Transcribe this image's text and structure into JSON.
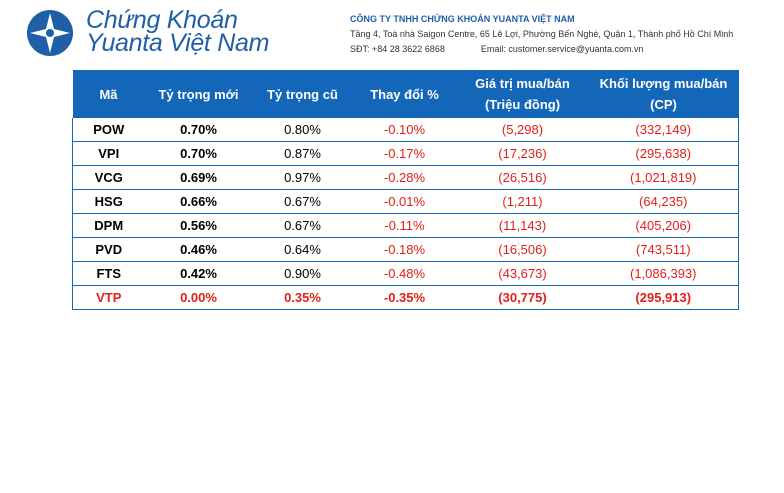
{
  "logo": {
    "line1": "Chứng Khoán",
    "line2": "Yuanta Việt Nam",
    "icon": "yuanta-logo-icon",
    "color": "#1f5fa8"
  },
  "company": {
    "name": "CÔNG TY TNHH CHỨNG KHOÁN YUANTA VIỆT NAM",
    "address": "Tầng 4, Toà nhà Saigon Centre, 65 Lê Lợi, Phường Bến Nghé, Quận 1, Thành phố Hồ Chí Minh",
    "phone": "SĐT: +84 28 3622 6868",
    "email": "Email: customer.service@yuanta.com.vn"
  },
  "table": {
    "header_color": "#1467b8",
    "negative_color": "#e0201b",
    "headers": [
      "Mã",
      "Tỷ trọng mới",
      "Tỷ trọng cũ",
      "Thay đổi %",
      "Giá trị mua/bán (Triệu đồng)",
      "Khối lượng mua/bán (CP)"
    ],
    "rows": [
      {
        "code": "POW",
        "new": "0.70%",
        "old": "0.80%",
        "change": "-0.10%",
        "value": "(5,298)",
        "volume": "(332,149)"
      },
      {
        "code": "VPI",
        "new": "0.70%",
        "old": "0.87%",
        "change": "-0.17%",
        "value": "(17,236)",
        "volume": "(295,638)"
      },
      {
        "code": "VCG",
        "new": "0.69%",
        "old": "0.97%",
        "change": "-0.28%",
        "value": "(26,516)",
        "volume": "(1,021,819)"
      },
      {
        "code": "HSG",
        "new": "0.66%",
        "old": "0.67%",
        "change": "-0.01%",
        "value": "(1,211)",
        "volume": "(64,235)"
      },
      {
        "code": "DPM",
        "new": "0.56%",
        "old": "0.67%",
        "change": "-0.11%",
        "value": "(11,143)",
        "volume": "(405,206)"
      },
      {
        "code": "PVD",
        "new": "0.46%",
        "old": "0.64%",
        "change": "-0.18%",
        "value": "(16,506)",
        "volume": "(743,511)"
      },
      {
        "code": "FTS",
        "new": "0.42%",
        "old": "0.90%",
        "change": "-0.48%",
        "value": "(43,673)",
        "volume": "(1,086,393)"
      },
      {
        "code": "VTP",
        "new": "0.00%",
        "old": "0.35%",
        "change": "-0.35%",
        "value": "(30,775)",
        "volume": "(295,913)",
        "highlight": true
      }
    ]
  }
}
